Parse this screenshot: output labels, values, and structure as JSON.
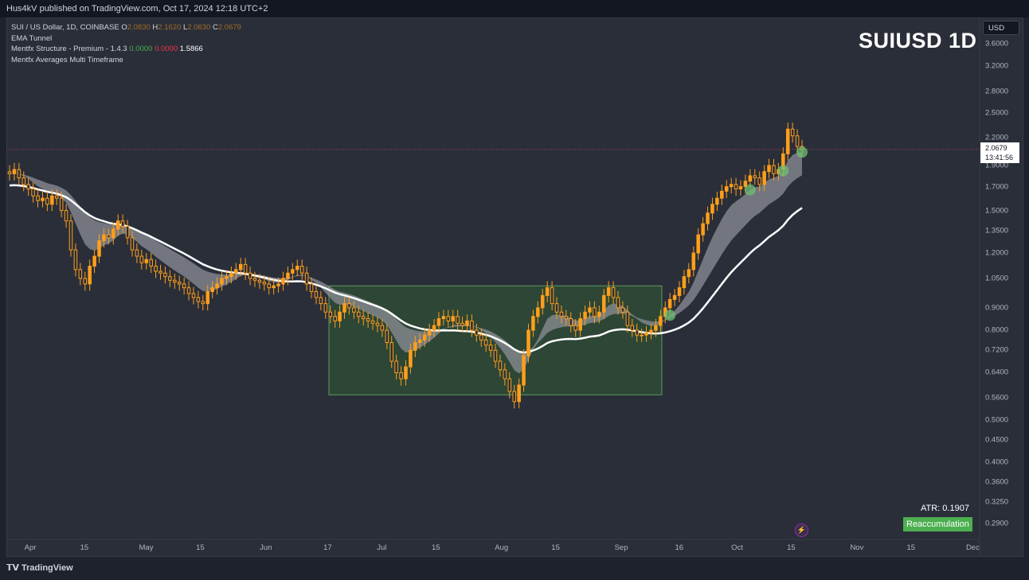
{
  "header": {
    "published_by": "Hus4kV published on TradingView.com, Oct 17, 2024 12:18 UTC+2"
  },
  "legend": {
    "symbol": "SUI / US Dollar, 1D, COINBASE",
    "o_label": "O",
    "o_value": "2.0830",
    "h_label": "H",
    "h_value": "2.1620",
    "l_label": "L",
    "l_value": "2.0630",
    "c_label": "C",
    "c_value": "2.0679",
    "indicator1": "EMA Tunnel",
    "indicator2": "Mentfx Structure - Premium - 1.4.3",
    "indicator2_v1": "0.0000",
    "indicator2_v2": "0.0000",
    "indicator2_v3": "1.5866",
    "indicator3": "Mentfx Averages Multi Timeframe"
  },
  "title_overlay": "SUIUSD 1D",
  "currency": "USD",
  "last_price": {
    "value": "2.0679",
    "countdown": "13:41:56"
  },
  "atr_label": "ATR: 0.1907",
  "badge": "Reaccumulation",
  "brand": "TradingView",
  "colors": {
    "background": "#2a2e39",
    "candle": "#ff9f1a",
    "tunnel": "#8c8f97",
    "ema_line": "#ffffff",
    "box_fill": "#2e4a35",
    "box_stroke": "#5b9c5f",
    "price_line": "#b2475b",
    "signal_dot": "#6fbf73"
  },
  "chart_data": {
    "type": "candlestick",
    "log_scale": true,
    "y_ticks": [
      "3.6000",
      "3.2000",
      "2.8000",
      "2.5000",
      "2.2000",
      "1.9000",
      "1.7000",
      "1.5000",
      "1.3500",
      "1.2000",
      "1.0500",
      "0.9000",
      "0.8000",
      "0.7200",
      "0.6400",
      "0.5600",
      "0.5000",
      "0.4500",
      "0.4000",
      "0.3600",
      "0.3250",
      "0.2900"
    ],
    "x_ticks": [
      "Apr",
      "15",
      "May",
      "15",
      "Jun",
      "17",
      "Jul",
      "15",
      "Aug",
      "15",
      "Sep",
      "16",
      "Oct",
      "15",
      "Nov",
      "15",
      "Dec"
    ],
    "last_price": 2.0679,
    "reaccumulation_range": {
      "low": 0.57,
      "high": 1.01,
      "start": "2024-06-17",
      "end": "2024-09-12"
    },
    "closes": [
      1.82,
      1.86,
      1.78,
      1.72,
      1.68,
      1.62,
      1.58,
      1.6,
      1.55,
      1.62,
      1.6,
      1.5,
      1.42,
      1.22,
      1.1,
      1.05,
      1.02,
      1.12,
      1.18,
      1.28,
      1.32,
      1.3,
      1.36,
      1.42,
      1.38,
      1.3,
      1.22,
      1.18,
      1.14,
      1.16,
      1.12,
      1.09,
      1.08,
      1.06,
      1.04,
      1.03,
      1.02,
      1.0,
      0.97,
      0.95,
      0.93,
      0.92,
      0.98,
      1.0,
      1.02,
      1.05,
      1.06,
      1.08,
      1.1,
      1.13,
      1.08,
      1.05,
      1.04,
      1.03,
      1.02,
      1.0,
      1.01,
      1.02,
      1.05,
      1.08,
      1.1,
      1.12,
      1.08,
      1.02,
      0.98,
      0.95,
      0.92,
      0.88,
      0.86,
      0.84,
      0.88,
      0.92,
      0.9,
      0.88,
      0.86,
      0.85,
      0.84,
      0.83,
      0.82,
      0.8,
      0.75,
      0.68,
      0.64,
      0.62,
      0.66,
      0.72,
      0.75,
      0.76,
      0.78,
      0.8,
      0.82,
      0.85,
      0.86,
      0.84,
      0.86,
      0.83,
      0.82,
      0.84,
      0.8,
      0.78,
      0.76,
      0.74,
      0.72,
      0.68,
      0.65,
      0.62,
      0.58,
      0.55,
      0.6,
      0.7,
      0.8,
      0.86,
      0.9,
      0.96,
      1.0,
      0.92,
      0.88,
      0.86,
      0.85,
      0.82,
      0.8,
      0.85,
      0.88,
      0.9,
      0.86,
      0.88,
      0.96,
      1.0,
      0.95,
      0.9,
      0.88,
      0.82,
      0.8,
      0.78,
      0.78,
      0.79,
      0.8,
      0.82,
      0.86,
      0.9,
      0.94,
      0.96,
      1.0,
      1.06,
      1.1,
      1.2,
      1.32,
      1.4,
      1.48,
      1.55,
      1.6,
      1.66,
      1.7,
      1.72,
      1.68,
      1.7,
      1.75,
      1.8,
      1.78,
      1.72,
      1.84,
      1.9,
      1.82,
      1.86,
      2.02,
      2.3,
      2.22,
      2.1,
      2.0679
    ],
    "series": [
      {
        "name": "EMA Tunnel"
      },
      {
        "name": "Mentfx Averages Multi Timeframe"
      }
    ]
  }
}
